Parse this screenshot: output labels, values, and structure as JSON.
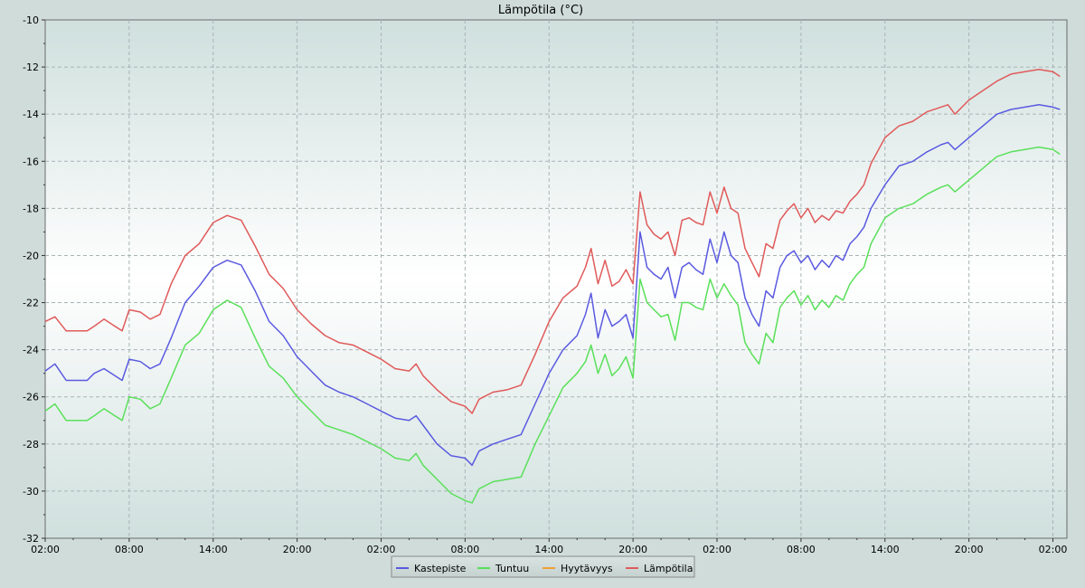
{
  "chart_data": {
    "type": "line",
    "title": "Lämpötila (°C)",
    "xlabel": "",
    "ylabel": "",
    "ylim": [
      -32,
      -10
    ],
    "y_ticks": [
      -10,
      -12,
      -14,
      -16,
      -18,
      -20,
      -22,
      -24,
      -26,
      -28,
      -30,
      -32
    ],
    "x_range_hours": [
      0,
      73
    ],
    "x_ticks": [
      {
        "h": 0,
        "label": "02:00"
      },
      {
        "h": 6,
        "label": "08:00"
      },
      {
        "h": 12,
        "label": "14:00"
      },
      {
        "h": 18,
        "label": "20:00"
      },
      {
        "h": 24,
        "label": "02:00"
      },
      {
        "h": 30,
        "label": "08:00"
      },
      {
        "h": 36,
        "label": "14:00"
      },
      {
        "h": 42,
        "label": "20:00"
      },
      {
        "h": 48,
        "label": "02:00"
      },
      {
        "h": 54,
        "label": "08:00"
      },
      {
        "h": 60,
        "label": "14:00"
      },
      {
        "h": 66,
        "label": "20:00"
      },
      {
        "h": 72,
        "label": "02:00"
      }
    ],
    "grid": true,
    "legend_position": "bottom-center",
    "series": [
      {
        "name": "Kastepiste",
        "color": "#5a5ae0",
        "points": [
          [
            0,
            -24.9
          ],
          [
            0.7,
            -24.6
          ],
          [
            1.5,
            -25.3
          ],
          [
            3,
            -25.3
          ],
          [
            3.5,
            -25.0
          ],
          [
            4.2,
            -24.8
          ],
          [
            5.5,
            -25.3
          ],
          [
            6,
            -24.4
          ],
          [
            6.8,
            -24.5
          ],
          [
            7.5,
            -24.8
          ],
          [
            8.2,
            -24.6
          ],
          [
            9,
            -23.5
          ],
          [
            10,
            -22.0
          ],
          [
            11,
            -21.3
          ],
          [
            12,
            -20.5
          ],
          [
            13,
            -20.2
          ],
          [
            14,
            -20.4
          ],
          [
            15,
            -21.5
          ],
          [
            16,
            -22.8
          ],
          [
            17,
            -23.4
          ],
          [
            18,
            -24.3
          ],
          [
            19,
            -24.9
          ],
          [
            20,
            -25.5
          ],
          [
            21,
            -25.8
          ],
          [
            22,
            -26.0
          ],
          [
            23,
            -26.3
          ],
          [
            24,
            -26.6
          ],
          [
            25,
            -26.9
          ],
          [
            26,
            -27.0
          ],
          [
            26.5,
            -26.8
          ],
          [
            27,
            -27.2
          ],
          [
            28,
            -28.0
          ],
          [
            29,
            -28.5
          ],
          [
            30,
            -28.6
          ],
          [
            30.5,
            -28.9
          ],
          [
            31,
            -28.3
          ],
          [
            32,
            -28.0
          ],
          [
            33,
            -27.8
          ],
          [
            34,
            -27.6
          ],
          [
            35,
            -26.3
          ],
          [
            36,
            -25.0
          ],
          [
            37,
            -24.0
          ],
          [
            38,
            -23.4
          ],
          [
            38.6,
            -22.5
          ],
          [
            39,
            -21.6
          ],
          [
            39.5,
            -23.5
          ],
          [
            40,
            -22.3
          ],
          [
            40.5,
            -23.0
          ],
          [
            41,
            -22.8
          ],
          [
            41.5,
            -22.5
          ],
          [
            42,
            -23.5
          ],
          [
            42.5,
            -19.0
          ],
          [
            43,
            -20.5
          ],
          [
            43.5,
            -20.8
          ],
          [
            44,
            -21.0
          ],
          [
            44.5,
            -20.5
          ],
          [
            45,
            -21.8
          ],
          [
            45.5,
            -20.5
          ],
          [
            46,
            -20.3
          ],
          [
            46.5,
            -20.6
          ],
          [
            47,
            -20.8
          ],
          [
            47.5,
            -19.3
          ],
          [
            48,
            -20.3
          ],
          [
            48.5,
            -19.0
          ],
          [
            49,
            -20.0
          ],
          [
            49.5,
            -20.3
          ],
          [
            50,
            -21.8
          ],
          [
            50.5,
            -22.5
          ],
          [
            51,
            -23.0
          ],
          [
            51.5,
            -21.5
          ],
          [
            52,
            -21.8
          ],
          [
            52.5,
            -20.5
          ],
          [
            53,
            -20.0
          ],
          [
            53.5,
            -19.8
          ],
          [
            54,
            -20.3
          ],
          [
            54.5,
            -20.0
          ],
          [
            55,
            -20.6
          ],
          [
            55.5,
            -20.2
          ],
          [
            56,
            -20.5
          ],
          [
            56.5,
            -20.0
          ],
          [
            57,
            -20.2
          ],
          [
            57.5,
            -19.5
          ],
          [
            58,
            -19.2
          ],
          [
            58.5,
            -18.8
          ],
          [
            59,
            -18.0
          ],
          [
            60,
            -17.0
          ],
          [
            61,
            -16.2
          ],
          [
            62,
            -16.0
          ],
          [
            63,
            -15.6
          ],
          [
            64,
            -15.3
          ],
          [
            64.5,
            -15.2
          ],
          [
            65,
            -15.5
          ],
          [
            66,
            -15.0
          ],
          [
            67,
            -14.5
          ],
          [
            68,
            -14.0
          ],
          [
            69,
            -13.8
          ],
          [
            70,
            -13.7
          ],
          [
            71,
            -13.6
          ],
          [
            72,
            -13.7
          ],
          [
            72.5,
            -13.8
          ]
        ]
      },
      {
        "name": "Tuntuu",
        "color": "#5ae05a",
        "points": [
          [
            0,
            -26.6
          ],
          [
            0.7,
            -26.3
          ],
          [
            1.5,
            -27.0
          ],
          [
            3,
            -27.0
          ],
          [
            3.5,
            -26.8
          ],
          [
            4.2,
            -26.5
          ],
          [
            5.5,
            -27.0
          ],
          [
            6,
            -26.0
          ],
          [
            6.8,
            -26.1
          ],
          [
            7.5,
            -26.5
          ],
          [
            8.2,
            -26.3
          ],
          [
            9,
            -25.2
          ],
          [
            10,
            -23.8
          ],
          [
            11,
            -23.3
          ],
          [
            12,
            -22.3
          ],
          [
            13,
            -21.9
          ],
          [
            14,
            -22.2
          ],
          [
            15,
            -23.5
          ],
          [
            16,
            -24.7
          ],
          [
            17,
            -25.2
          ],
          [
            18,
            -26.0
          ],
          [
            19,
            -26.6
          ],
          [
            20,
            -27.2
          ],
          [
            21,
            -27.4
          ],
          [
            22,
            -27.6
          ],
          [
            23,
            -27.9
          ],
          [
            24,
            -28.2
          ],
          [
            25,
            -28.6
          ],
          [
            26,
            -28.7
          ],
          [
            26.5,
            -28.4
          ],
          [
            27,
            -28.9
          ],
          [
            28,
            -29.5
          ],
          [
            29,
            -30.1
          ],
          [
            30,
            -30.4
          ],
          [
            30.5,
            -30.5
          ],
          [
            31,
            -29.9
          ],
          [
            32,
            -29.6
          ],
          [
            33,
            -29.5
          ],
          [
            34,
            -29.4
          ],
          [
            35,
            -28.0
          ],
          [
            36,
            -26.8
          ],
          [
            37,
            -25.6
          ],
          [
            38,
            -25.0
          ],
          [
            38.6,
            -24.5
          ],
          [
            39,
            -23.8
          ],
          [
            39.5,
            -25.0
          ],
          [
            40,
            -24.2
          ],
          [
            40.5,
            -25.1
          ],
          [
            41,
            -24.8
          ],
          [
            41.5,
            -24.3
          ],
          [
            42,
            -25.2
          ],
          [
            42.5,
            -21.0
          ],
          [
            43,
            -22.0
          ],
          [
            43.5,
            -22.3
          ],
          [
            44,
            -22.6
          ],
          [
            44.5,
            -22.5
          ],
          [
            45,
            -23.6
          ],
          [
            45.5,
            -22.0
          ],
          [
            46,
            -22.0
          ],
          [
            46.5,
            -22.2
          ],
          [
            47,
            -22.3
          ],
          [
            47.5,
            -21.0
          ],
          [
            48,
            -21.8
          ],
          [
            48.5,
            -21.2
          ],
          [
            49,
            -21.7
          ],
          [
            49.5,
            -22.1
          ],
          [
            50,
            -23.7
          ],
          [
            50.5,
            -24.2
          ],
          [
            51,
            -24.6
          ],
          [
            51.5,
            -23.3
          ],
          [
            52,
            -23.7
          ],
          [
            52.5,
            -22.2
          ],
          [
            53,
            -21.8
          ],
          [
            53.5,
            -21.5
          ],
          [
            54,
            -22.1
          ],
          [
            54.5,
            -21.7
          ],
          [
            55,
            -22.3
          ],
          [
            55.5,
            -21.9
          ],
          [
            56,
            -22.2
          ],
          [
            56.5,
            -21.7
          ],
          [
            57,
            -21.9
          ],
          [
            57.5,
            -21.2
          ],
          [
            58,
            -20.8
          ],
          [
            58.5,
            -20.5
          ],
          [
            59,
            -19.5
          ],
          [
            60,
            -18.4
          ],
          [
            61,
            -18.0
          ],
          [
            62,
            -17.8
          ],
          [
            63,
            -17.4
          ],
          [
            64,
            -17.1
          ],
          [
            64.5,
            -17.0
          ],
          [
            65,
            -17.3
          ],
          [
            66,
            -16.8
          ],
          [
            67,
            -16.3
          ],
          [
            68,
            -15.8
          ],
          [
            69,
            -15.6
          ],
          [
            70,
            -15.5
          ],
          [
            71,
            -15.4
          ],
          [
            72,
            -15.5
          ],
          [
            72.5,
            -15.7
          ]
        ]
      },
      {
        "name": "Hyytävyys",
        "color": "#f0a030",
        "points": []
      },
      {
        "name": "Lämpötila",
        "color": "#e05a5a",
        "points": [
          [
            0,
            -22.8
          ],
          [
            0.7,
            -22.6
          ],
          [
            1.5,
            -23.2
          ],
          [
            3,
            -23.2
          ],
          [
            3.5,
            -23.0
          ],
          [
            4.2,
            -22.7
          ],
          [
            5.5,
            -23.2
          ],
          [
            6,
            -22.3
          ],
          [
            6.8,
            -22.4
          ],
          [
            7.5,
            -22.7
          ],
          [
            8.2,
            -22.5
          ],
          [
            9,
            -21.2
          ],
          [
            10,
            -20.0
          ],
          [
            11,
            -19.5
          ],
          [
            12,
            -18.6
          ],
          [
            13,
            -18.3
          ],
          [
            14,
            -18.5
          ],
          [
            15,
            -19.6
          ],
          [
            16,
            -20.8
          ],
          [
            17,
            -21.4
          ],
          [
            18,
            -22.3
          ],
          [
            19,
            -22.9
          ],
          [
            20,
            -23.4
          ],
          [
            21,
            -23.7
          ],
          [
            22,
            -23.8
          ],
          [
            23,
            -24.1
          ],
          [
            24,
            -24.4
          ],
          [
            25,
            -24.8
          ],
          [
            26,
            -24.9
          ],
          [
            26.5,
            -24.6
          ],
          [
            27,
            -25.1
          ],
          [
            28,
            -25.7
          ],
          [
            29,
            -26.2
          ],
          [
            30,
            -26.4
          ],
          [
            30.5,
            -26.7
          ],
          [
            31,
            -26.1
          ],
          [
            32,
            -25.8
          ],
          [
            33,
            -25.7
          ],
          [
            34,
            -25.5
          ],
          [
            35,
            -24.2
          ],
          [
            36,
            -22.8
          ],
          [
            37,
            -21.8
          ],
          [
            38,
            -21.3
          ],
          [
            38.6,
            -20.5
          ],
          [
            39,
            -19.7
          ],
          [
            39.5,
            -21.2
          ],
          [
            40,
            -20.2
          ],
          [
            40.5,
            -21.3
          ],
          [
            41,
            -21.1
          ],
          [
            41.5,
            -20.6
          ],
          [
            42,
            -21.2
          ],
          [
            42.5,
            -17.3
          ],
          [
            43,
            -18.7
          ],
          [
            43.5,
            -19.1
          ],
          [
            44,
            -19.3
          ],
          [
            44.5,
            -19.0
          ],
          [
            45,
            -20.0
          ],
          [
            45.5,
            -18.5
          ],
          [
            46,
            -18.4
          ],
          [
            46.5,
            -18.6
          ],
          [
            47,
            -18.7
          ],
          [
            47.5,
            -17.3
          ],
          [
            48,
            -18.2
          ],
          [
            48.5,
            -17.1
          ],
          [
            49,
            -18.0
          ],
          [
            49.5,
            -18.2
          ],
          [
            50,
            -19.7
          ],
          [
            50.5,
            -20.3
          ],
          [
            51,
            -20.9
          ],
          [
            51.5,
            -19.5
          ],
          [
            52,
            -19.7
          ],
          [
            52.5,
            -18.5
          ],
          [
            53,
            -18.1
          ],
          [
            53.5,
            -17.8
          ],
          [
            54,
            -18.4
          ],
          [
            54.5,
            -18.0
          ],
          [
            55,
            -18.6
          ],
          [
            55.5,
            -18.3
          ],
          [
            56,
            -18.5
          ],
          [
            56.5,
            -18.1
          ],
          [
            57,
            -18.2
          ],
          [
            57.5,
            -17.7
          ],
          [
            58,
            -17.4
          ],
          [
            58.5,
            -17.0
          ],
          [
            59,
            -16.1
          ],
          [
            60,
            -15.0
          ],
          [
            61,
            -14.5
          ],
          [
            62,
            -14.3
          ],
          [
            63,
            -13.9
          ],
          [
            64,
            -13.7
          ],
          [
            64.5,
            -13.6
          ],
          [
            65,
            -14.0
          ],
          [
            66,
            -13.4
          ],
          [
            67,
            -13.0
          ],
          [
            68,
            -12.6
          ],
          [
            69,
            -12.3
          ],
          [
            70,
            -12.2
          ],
          [
            71,
            -12.1
          ],
          [
            72,
            -12.2
          ],
          [
            72.5,
            -12.4
          ]
        ]
      }
    ]
  }
}
